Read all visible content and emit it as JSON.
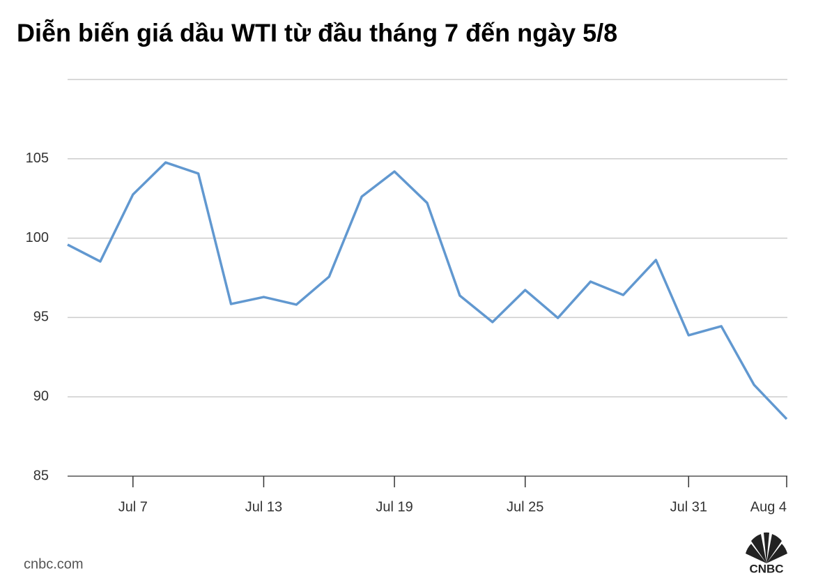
{
  "chart_data": {
    "type": "line",
    "title": "Diễn biến giá dầu WTI từ đầu tháng 7 đến ngày 5/8",
    "categories": [
      null,
      null,
      "Jul 7",
      null,
      null,
      null,
      "Jul 13",
      null,
      null,
      null,
      "Jul 19",
      null,
      null,
      null,
      "Jul 25",
      null,
      null,
      null,
      null,
      "Jul 31",
      null,
      null,
      "Aug 4"
    ],
    "values": [
      99.59,
      98.53,
      102.75,
      104.77,
      104.07,
      95.85,
      96.29,
      95.81,
      97.57,
      102.62,
      104.2,
      102.22,
      96.38,
      94.71,
      96.73,
      94.97,
      97.26,
      96.42,
      98.62,
      93.88,
      94.45,
      90.76,
      88.6
    ],
    "color": "#6198d0",
    "ylim": [
      85,
      110
    ],
    "yticks": [
      85,
      90,
      95,
      100,
      105
    ],
    "grid": true,
    "source": "cnbc.com",
    "logo": "CNBC"
  }
}
